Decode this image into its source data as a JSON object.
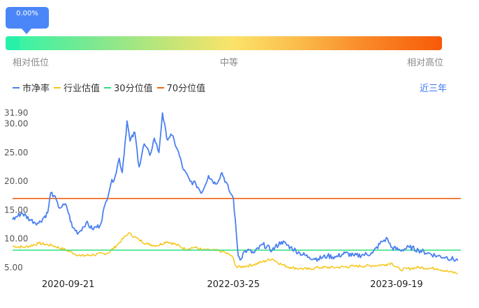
{
  "percentile_badge": "0.00%",
  "scale_labels": {
    "low": "相对低位",
    "mid": "中等",
    "high": "相对高位"
  },
  "range_selector": "近三年",
  "legend": [
    {
      "label": "市净率",
      "color": "#4a7ff0"
    },
    {
      "label": "行业估值",
      "color": "#f5c518"
    },
    {
      "label": "30分位值",
      "color": "#2ee07f"
    },
    {
      "label": "70分位值",
      "color": "#f06414"
    }
  ],
  "chart_data": {
    "type": "line",
    "y_ticks": [
      "31.90",
      "30.00",
      "25.00",
      "20.00",
      "15.00",
      "10.00",
      "5.00"
    ],
    "x_ticks": [
      "2020-09-21",
      "2022-03-25",
      "2023-09-19"
    ],
    "ylim": [
      4.0,
      31.9
    ],
    "xlim": [
      "2020-03-20",
      "2024-04-20"
    ],
    "series": [
      {
        "name": "市净率",
        "color": "#4a7ff0",
        "x": [
          "2020-03-20",
          "2020-04-20",
          "2020-05-20",
          "2020-06-15",
          "2020-07-15",
          "2020-07-25",
          "2020-08-05",
          "2020-08-20",
          "2020-09-15",
          "2020-10-05",
          "2020-10-25",
          "2020-11-20",
          "2020-12-10",
          "2021-01-05",
          "2021-01-25",
          "2021-02-10",
          "2021-02-25",
          "2021-03-10",
          "2021-03-20",
          "2021-04-05",
          "2021-04-15",
          "2021-05-01",
          "2021-05-15",
          "2021-06-01",
          "2021-06-20",
          "2021-07-05",
          "2021-07-20",
          "2021-08-01",
          "2021-08-15",
          "2021-09-01",
          "2021-09-20",
          "2021-10-10",
          "2021-11-01",
          "2021-11-20",
          "2021-12-10",
          "2022-01-01",
          "2022-01-25",
          "2022-02-15",
          "2022-03-10",
          "2022-03-25",
          "2022-04-10",
          "2022-04-20",
          "2022-04-26",
          "2022-05-10",
          "2022-06-01",
          "2022-07-01",
          "2022-08-01",
          "2022-09-01",
          "2022-10-01",
          "2022-11-01",
          "2022-12-01",
          "2023-01-01",
          "2023-02-01",
          "2023-03-01",
          "2023-04-01",
          "2023-05-01",
          "2023-06-01",
          "2023-07-01",
          "2023-08-01",
          "2023-08-20",
          "2023-09-01",
          "2023-10-01",
          "2023-11-01",
          "2023-12-01",
          "2024-01-01",
          "2024-02-01",
          "2024-03-01",
          "2024-04-10"
        ],
        "values": [
          13.3,
          14.5,
          13.2,
          12.7,
          14.5,
          18.0,
          17.5,
          15.5,
          15.8,
          12.0,
          11.0,
          12.8,
          11.7,
          12.3,
          16.5,
          19.5,
          21.0,
          24.0,
          21.5,
          30.5,
          27.0,
          28.5,
          22.5,
          26.5,
          24.5,
          27.5,
          25.0,
          31.9,
          27.5,
          28.0,
          25.5,
          22.0,
          20.0,
          19.5,
          18.0,
          21.0,
          19.5,
          21.5,
          18.5,
          17.0,
          7.0,
          6.5,
          7.5,
          8.0,
          7.5,
          9.0,
          8.0,
          9.5,
          8.5,
          7.5,
          6.8,
          6.5,
          7.0,
          6.8,
          7.5,
          7.0,
          7.2,
          7.5,
          9.5,
          10.0,
          8.5,
          8.0,
          8.5,
          8.0,
          7.5,
          7.0,
          6.8,
          6.2
        ]
      },
      {
        "name": "行业估值",
        "color": "#f5c518",
        "x": [
          "2020-03-20",
          "2020-05-01",
          "2020-06-15",
          "2020-08-01",
          "2020-09-15",
          "2020-11-01",
          "2020-12-15",
          "2021-02-01",
          "2021-03-01",
          "2021-04-10",
          "2021-05-15",
          "2021-06-15",
          "2021-07-15",
          "2021-08-15",
          "2021-09-15",
          "2021-10-15",
          "2021-11-15",
          "2021-12-15",
          "2022-01-15",
          "2022-02-15",
          "2022-03-20",
          "2022-04-05",
          "2022-05-01",
          "2022-06-01",
          "2022-07-01",
          "2022-08-01",
          "2022-09-01",
          "2022-10-01",
          "2022-11-01",
          "2022-12-01",
          "2023-01-01",
          "2023-03-01",
          "2023-05-01",
          "2023-07-01",
          "2023-08-15",
          "2023-09-01",
          "2023-10-01",
          "2023-12-01",
          "2024-02-01",
          "2024-03-15",
          "2024-04-10"
        ],
        "values": [
          8.7,
          8.5,
          9.2,
          8.8,
          8.0,
          7.0,
          7.2,
          7.5,
          8.8,
          11.0,
          9.8,
          9.0,
          8.8,
          9.5,
          9.0,
          8.2,
          8.5,
          8.0,
          8.0,
          7.8,
          7.0,
          5.0,
          5.2,
          5.5,
          6.0,
          6.5,
          5.5,
          5.0,
          4.8,
          4.7,
          5.0,
          5.0,
          5.2,
          5.3,
          5.5,
          5.8,
          4.6,
          5.0,
          4.8,
          4.2,
          4.0
        ]
      },
      {
        "name": "30分位值",
        "color": "#2ee07f",
        "x": [
          "2020-03-20",
          "2024-04-20"
        ],
        "values": [
          8.0,
          8.0
        ]
      },
      {
        "name": "70分位值",
        "color": "#f06414",
        "x": [
          "2020-03-20",
          "2024-04-20"
        ],
        "values": [
          17.0,
          17.0
        ]
      }
    ]
  }
}
